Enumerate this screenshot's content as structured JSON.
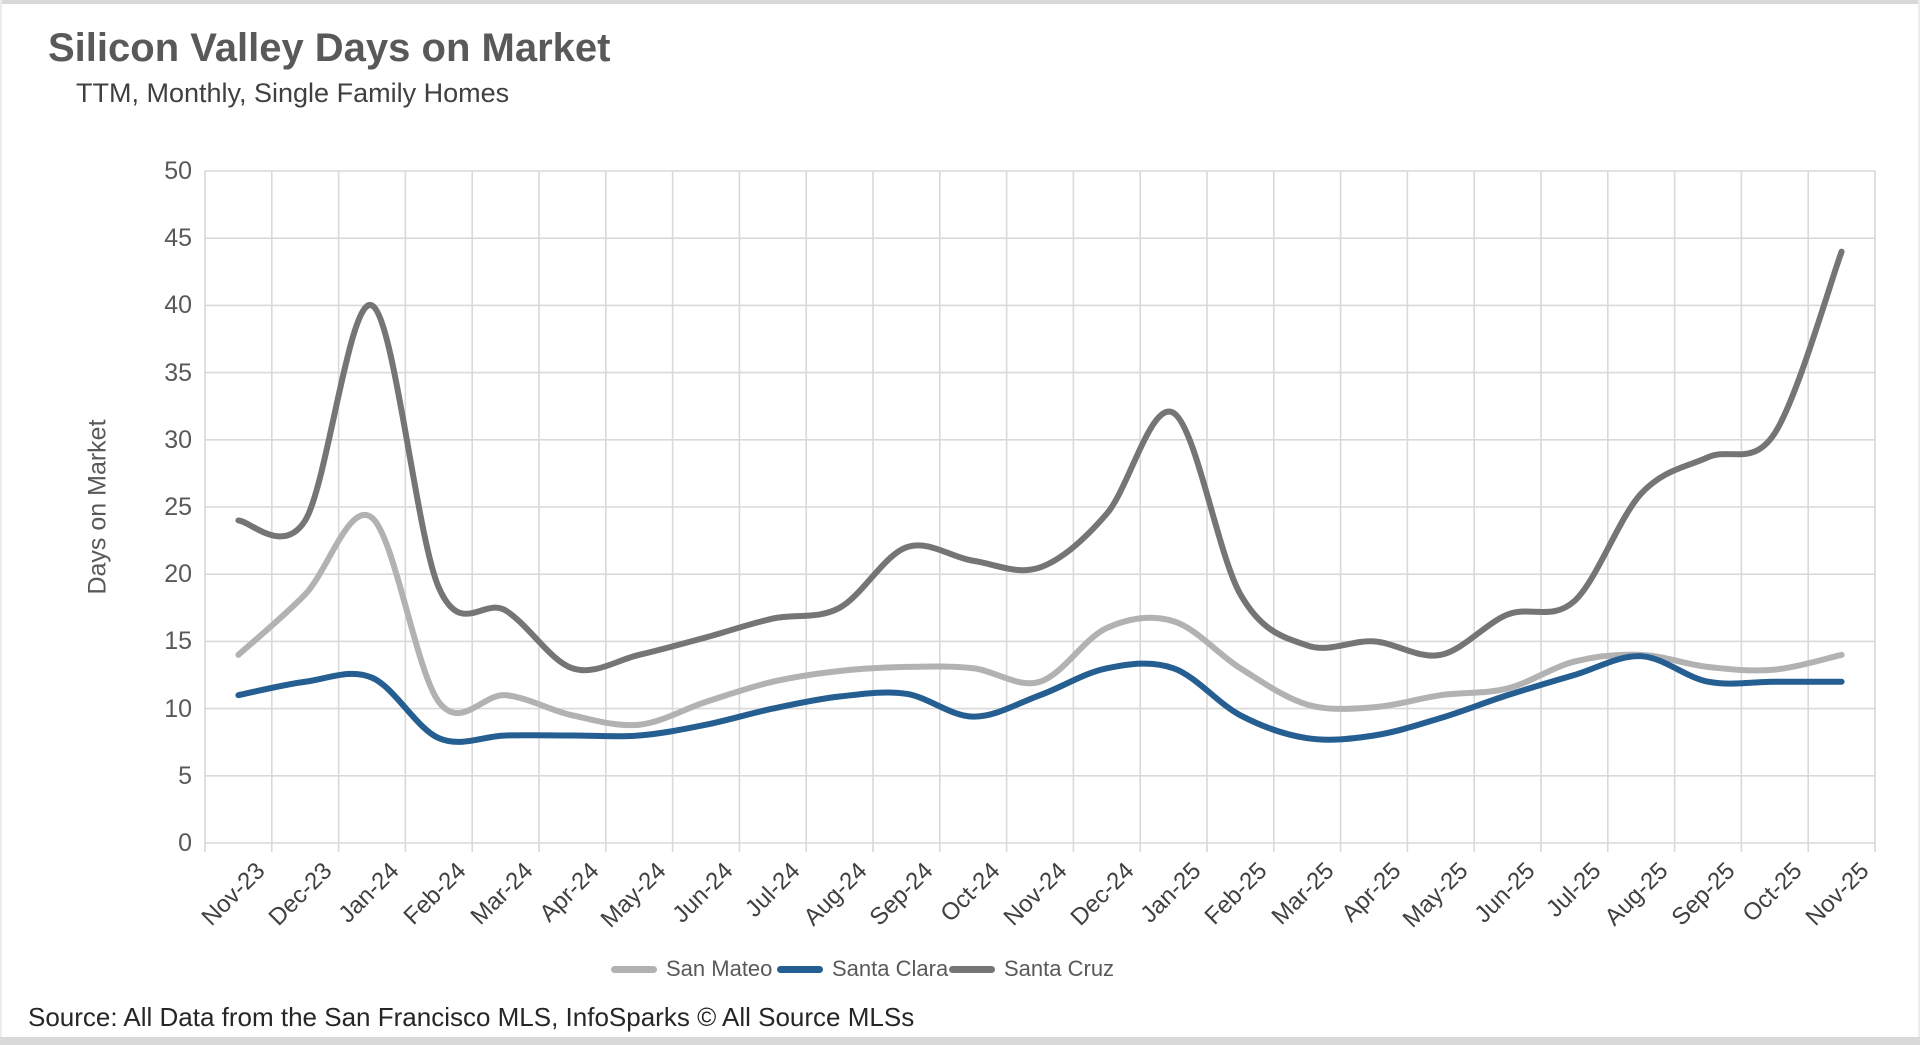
{
  "chart_data": {
    "type": "line",
    "title": "Silicon Valley Days on Market",
    "subtitle": "TTM, Monthly, Single Family Homes",
    "ylabel": "Days on Market",
    "xlabel": "",
    "ylim": [
      0,
      50
    ],
    "ytick_step": 5,
    "grid": true,
    "smooth": true,
    "legend_position": "bottom",
    "gridline_color": "#d9d9d9",
    "categories": [
      "Nov-23",
      "Dec-23",
      "Jan-24",
      "Feb-24",
      "Mar-24",
      "Apr-24",
      "May-24",
      "Jun-24",
      "Jul-24",
      "Aug-24",
      "Sep-24",
      "Oct-24",
      "Nov-24",
      "Dec-24",
      "Jan-25",
      "Feb-25",
      "Mar-25",
      "Apr-25",
      "May-25",
      "Jun-25",
      "Jul-25",
      "Aug-25",
      "Sep-25",
      "Oct-25",
      "Nov-25"
    ],
    "series": [
      {
        "name": "San Mateo",
        "color": "#b2b2b2",
        "values": [
          14,
          18.5,
          24.2,
          10.5,
          11,
          9.5,
          8.8,
          10.5,
          12,
          12.8,
          13.1,
          13,
          12,
          16,
          16.5,
          13,
          10.3,
          10.1,
          11,
          11.5,
          13.5,
          14,
          13.1,
          12.9,
          14
        ]
      },
      {
        "name": "Santa Clara",
        "color": "#255e91",
        "values": [
          11,
          12,
          12.3,
          7.8,
          8,
          8,
          8,
          8.8,
          10,
          10.9,
          11.1,
          9.4,
          11,
          13,
          13,
          9.5,
          7.8,
          8,
          9.3,
          11,
          12.5,
          13.9,
          12,
          12,
          12
        ]
      },
      {
        "name": "Santa Cruz",
        "color": "#757575",
        "values": [
          24,
          24,
          40,
          19,
          17.3,
          13,
          14,
          15.3,
          16.7,
          17.5,
          22,
          21,
          20.5,
          24.5,
          32,
          18.5,
          14.7,
          15,
          14,
          17,
          18,
          26,
          28.7,
          30.5,
          44
        ]
      }
    ]
  },
  "footer": {
    "source": "Source: All Data from the San Francisco MLS, InfoSparks © All Source MLSs"
  }
}
